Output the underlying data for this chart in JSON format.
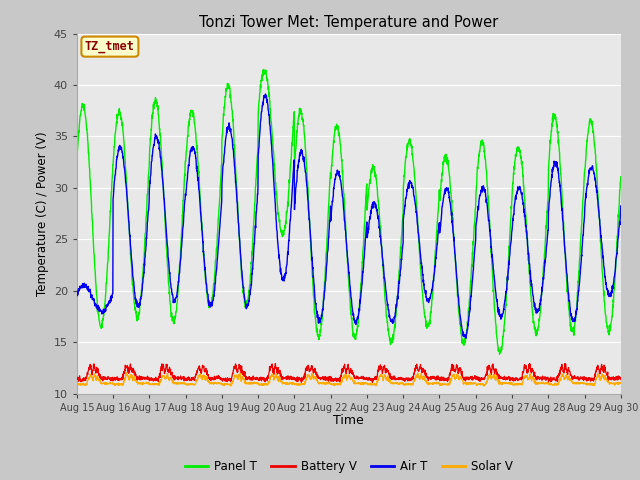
{
  "title": "Tonzi Tower Met: Temperature and Power",
  "xlabel": "Time",
  "ylabel": "Temperature (C) / Power (V)",
  "ylim": [
    10,
    45
  ],
  "yticks": [
    10,
    15,
    20,
    25,
    30,
    35,
    40,
    45
  ],
  "xtick_labels": [
    "Aug 15",
    "Aug 16",
    "Aug 17",
    "Aug 18",
    "Aug 19",
    "Aug 20",
    "Aug 21",
    "Aug 22",
    "Aug 23",
    "Aug 24",
    "Aug 25",
    "Aug 26",
    "Aug 27",
    "Aug 28",
    "Aug 29",
    "Aug 30"
  ],
  "panel_color": "#00ee00",
  "battery_color": "#ee0000",
  "air_color": "#0000ee",
  "solar_color": "#ffaa00",
  "figure_bg": "#c8c8c8",
  "plot_bg": "#e8e8e8",
  "annotation_text": "TZ_tmet",
  "annotation_bg": "#ffffcc",
  "annotation_border": "#cc8800",
  "panel_peaks": [
    38.0,
    37.5,
    38.5,
    37.5,
    40.0,
    41.5,
    37.5,
    36.0,
    32.0,
    34.5,
    33.0,
    34.5,
    34.0,
    37.0,
    36.5
  ],
  "panel_mins": [
    16.5,
    17.5,
    17.0,
    18.5,
    18.5,
    25.5,
    15.5,
    15.5,
    15.0,
    16.5,
    15.0,
    14.0,
    16.0,
    16.0,
    16.0
  ],
  "air_peaks": [
    20.5,
    34.0,
    35.0,
    34.0,
    36.0,
    39.0,
    33.5,
    31.5,
    28.5,
    30.5,
    30.0,
    30.0,
    30.0,
    32.5,
    32.0
  ],
  "air_mins": [
    18.0,
    18.5,
    19.0,
    18.5,
    18.5,
    21.0,
    17.0,
    17.0,
    17.0,
    19.0,
    15.5,
    17.5,
    18.0,
    17.0,
    19.5
  ]
}
